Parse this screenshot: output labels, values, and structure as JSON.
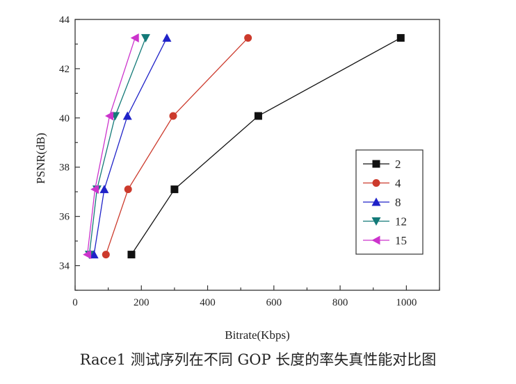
{
  "caption": "Race1 测试序列在不同 GOP 长度的率失真性能对比图",
  "chart_data": {
    "type": "line",
    "title": "",
    "xlabel": "Bitrate(Kbps)",
    "ylabel": "PSNR(dB)",
    "xlim": [
      0,
      1100
    ],
    "ylim": [
      33,
      44
    ],
    "xticks": [
      0,
      200,
      400,
      600,
      800,
      1000
    ],
    "yticks": [
      34,
      36,
      38,
      40,
      42,
      44
    ],
    "grid": false,
    "legend_position": "right",
    "series": [
      {
        "name": "2",
        "color": "#111111",
        "marker": "square",
        "x": [
          170,
          300,
          553,
          983
        ],
        "y": [
          34.45,
          37.1,
          40.08,
          43.25
        ]
      },
      {
        "name": "4",
        "color": "#cc3a2c",
        "marker": "circle",
        "x": [
          93,
          160,
          296,
          522
        ],
        "y": [
          34.45,
          37.1,
          40.08,
          43.25
        ]
      },
      {
        "name": "8",
        "color": "#1f22c8",
        "marker": "triangle-up",
        "x": [
          57,
          88,
          158,
          277
        ],
        "y": [
          34.45,
          37.1,
          40.08,
          43.25
        ]
      },
      {
        "name": "12",
        "color": "#137a78",
        "marker": "triangle-down",
        "x": [
          43,
          66,
          121,
          213
        ],
        "y": [
          34.45,
          37.1,
          40.08,
          43.25
        ]
      },
      {
        "name": "15",
        "color": "#cc33cc",
        "marker": "triangle-left",
        "x": [
          37,
          60,
          104,
          181
        ],
        "y": [
          34.45,
          37.1,
          40.08,
          43.25
        ]
      }
    ]
  }
}
